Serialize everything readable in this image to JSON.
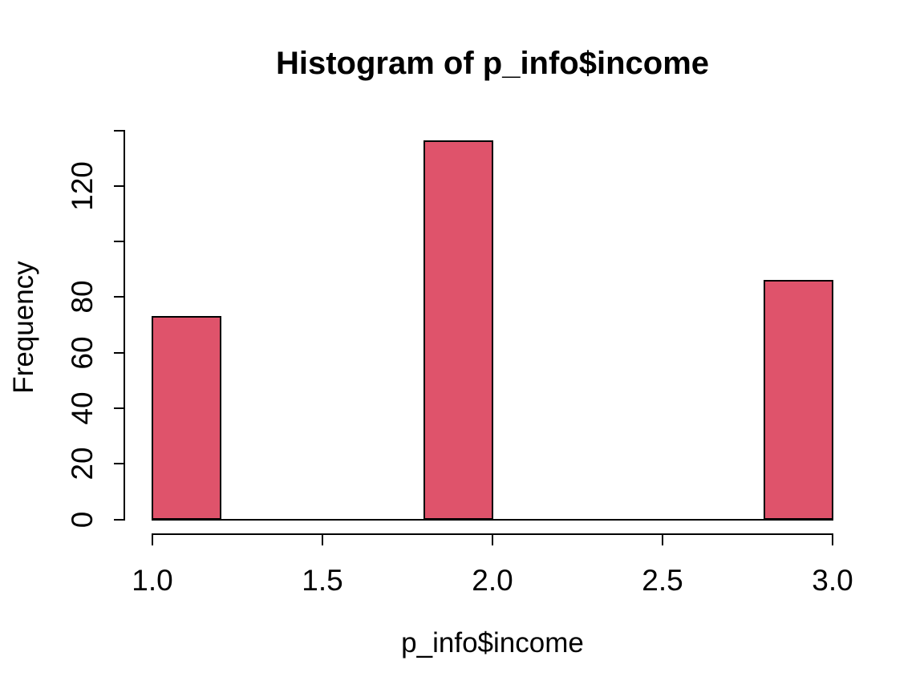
{
  "chart_data": {
    "type": "bar",
    "subtype": "histogram",
    "title": "Histogram of p_info$income",
    "xlabel": "p_info$income",
    "ylabel": "Frequency",
    "bins": [
      {
        "x0": 1.0,
        "x1": 1.2,
        "count": 73
      },
      {
        "x0": 1.2,
        "x1": 1.4,
        "count": 0
      },
      {
        "x0": 1.4,
        "x1": 1.6,
        "count": 0
      },
      {
        "x0": 1.6,
        "x1": 1.8,
        "count": 0
      },
      {
        "x0": 1.8,
        "x1": 2.0,
        "count": 136
      },
      {
        "x0": 2.0,
        "x1": 2.2,
        "count": 0
      },
      {
        "x0": 2.2,
        "x1": 2.4,
        "count": 0
      },
      {
        "x0": 2.4,
        "x1": 2.6,
        "count": 0
      },
      {
        "x0": 2.6,
        "x1": 2.8,
        "count": 0
      },
      {
        "x0": 2.8,
        "x1": 3.0,
        "count": 86
      }
    ],
    "x_ticks": [
      {
        "value": 1.0,
        "label": "1.0"
      },
      {
        "value": 1.5,
        "label": "1.5"
      },
      {
        "value": 2.0,
        "label": "2.0"
      },
      {
        "value": 2.5,
        "label": "2.5"
      },
      {
        "value": 3.0,
        "label": "3.0"
      }
    ],
    "y_ticks": [
      {
        "value": 0,
        "label": "0"
      },
      {
        "value": 20,
        "label": "20"
      },
      {
        "value": 40,
        "label": "40"
      },
      {
        "value": 60,
        "label": "60"
      },
      {
        "value": 80,
        "label": "80"
      },
      {
        "value": 100,
        "label": ""
      },
      {
        "value": 120,
        "label": "120"
      },
      {
        "value": 140,
        "label": ""
      }
    ],
    "xlim": [
      1.0,
      3.0
    ],
    "ylim": [
      0,
      140
    ],
    "grid": false,
    "legend": false,
    "colors": {
      "bar_fill": "#DF536B",
      "bar_border": "#000000",
      "axis": "#000000",
      "text": "#000000",
      "background": "#FFFFFF"
    }
  }
}
